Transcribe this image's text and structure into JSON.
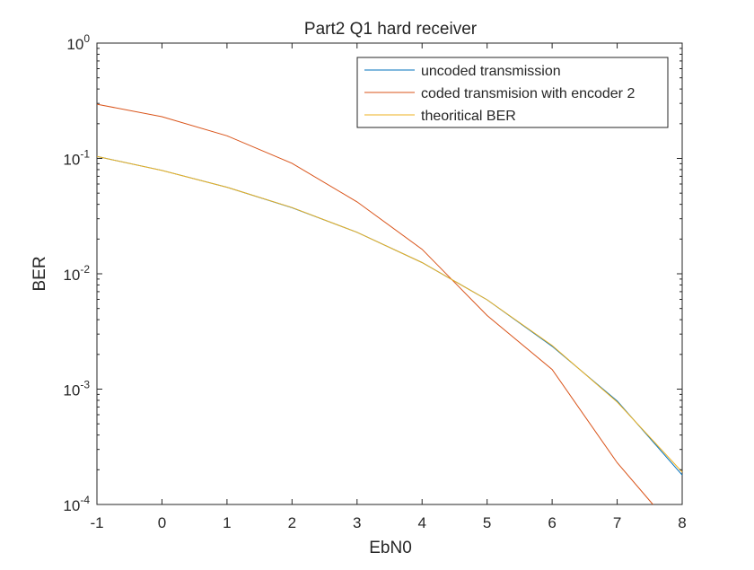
{
  "chart_data": {
    "type": "line",
    "title": "Part2 Q1 hard receiver",
    "xlabel": "EbN0",
    "ylabel": "BER",
    "xlim": [
      -1,
      8
    ],
    "ylim": [
      0.0001,
      1
    ],
    "yscale": "log",
    "grid": false,
    "legend_position": "top-right",
    "x_ticks": [
      {
        "value": -1,
        "label": "-1"
      },
      {
        "value": 0,
        "label": "0"
      },
      {
        "value": 1,
        "label": "1"
      },
      {
        "value": 2,
        "label": "2"
      },
      {
        "value": 3,
        "label": "3"
      },
      {
        "value": 4,
        "label": "4"
      },
      {
        "value": 5,
        "label": "5"
      },
      {
        "value": 6,
        "label": "6"
      },
      {
        "value": 7,
        "label": "7"
      },
      {
        "value": 8,
        "label": "8"
      }
    ],
    "y_ticks": [
      {
        "value": 1,
        "base": "10",
        "exp": "0"
      },
      {
        "value": 0.1,
        "base": "10",
        "exp": "-1"
      },
      {
        "value": 0.01,
        "base": "10",
        "exp": "-2"
      },
      {
        "value": 0.001,
        "base": "10",
        "exp": "-3"
      },
      {
        "value": 0.0001,
        "base": "10",
        "exp": "-4"
      }
    ],
    "x": [
      -1,
      0,
      1,
      2,
      3,
      4,
      5,
      6,
      7,
      8
    ],
    "series": [
      {
        "name": "uncoded transmission",
        "color": "#0072BD",
        "x": [
          -1,
          0,
          1,
          2,
          3,
          4,
          5,
          6,
          7,
          8
        ],
        "values": [
          0.104,
          0.0788,
          0.0563,
          0.0374,
          0.0229,
          0.0125,
          0.00595,
          0.00235,
          0.00079,
          0.00018
        ]
      },
      {
        "name": "coded transmision with encoder 2",
        "color": "#D95319",
        "x": [
          -1,
          0,
          1,
          2,
          3,
          4,
          5,
          6,
          7,
          7.55
        ],
        "values": [
          0.295,
          0.23,
          0.157,
          0.0908,
          0.042,
          0.0163,
          0.00435,
          0.00148,
          0.00023,
          0.0001
        ]
      },
      {
        "name": "theoritical BER",
        "color": "#EDB120",
        "x": [
          -1,
          0,
          1,
          2,
          3,
          4,
          5,
          6,
          7,
          8
        ],
        "values": [
          0.104,
          0.0786,
          0.0563,
          0.0375,
          0.0229,
          0.0125,
          0.00595,
          0.00239,
          0.000773,
          0.000191
        ]
      }
    ]
  }
}
